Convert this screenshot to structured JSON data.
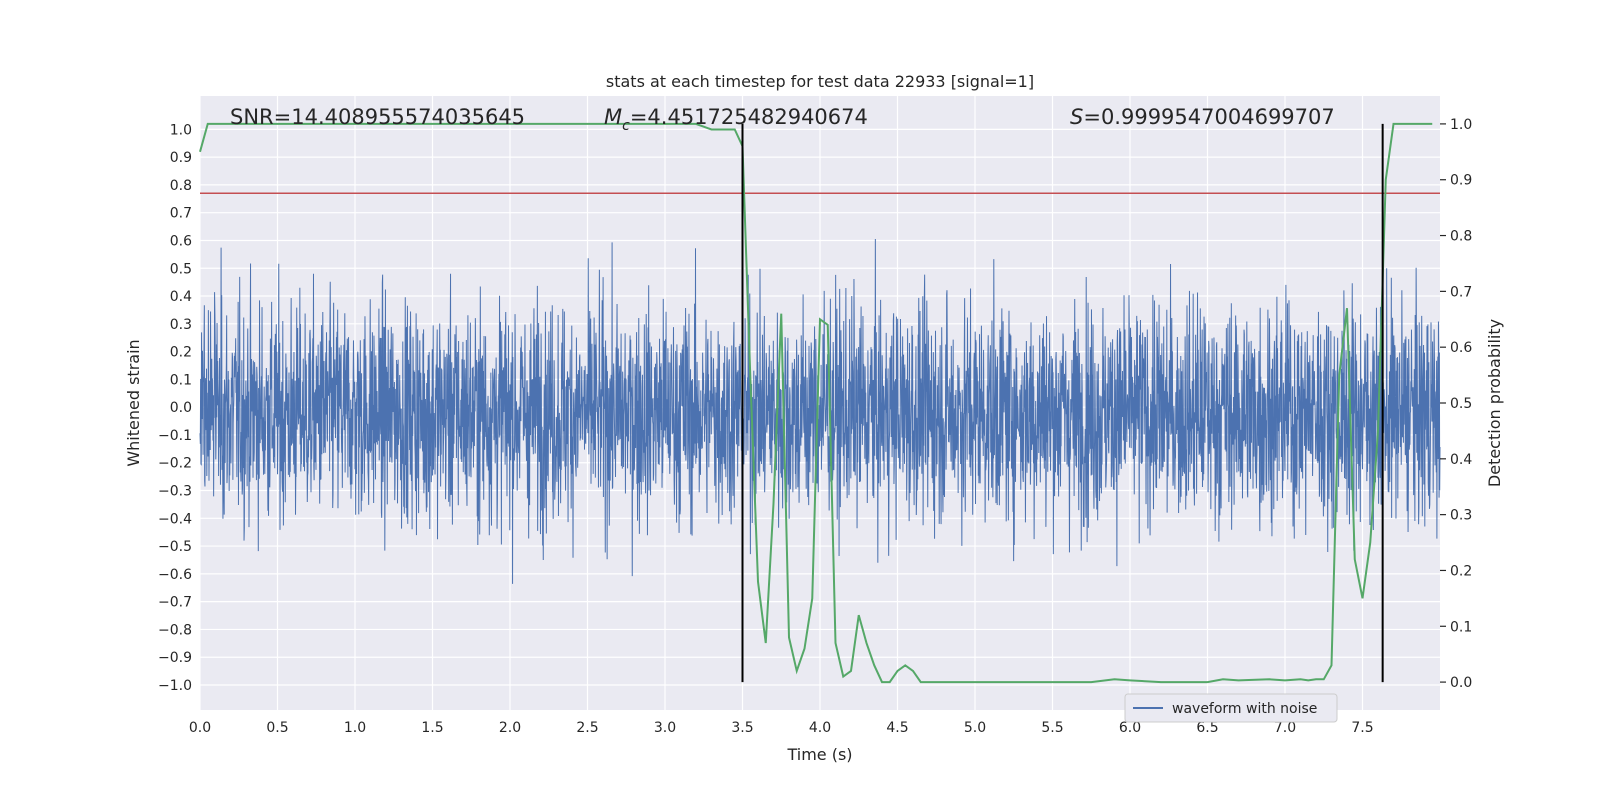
{
  "chart_data": {
    "type": "line",
    "title": "stats at each timestep for test data 22933 [signal=1]",
    "xlabel": "Time (s)",
    "ylabel": "Whitened strain",
    "y2label": "Detection probability",
    "xlim": [
      0.0,
      8.0
    ],
    "ylim": [
      -1.09,
      1.12
    ],
    "y2lim": [
      -0.05,
      1.05
    ],
    "xticks": [
      0.0,
      0.5,
      1.0,
      1.5,
      2.0,
      2.5,
      3.0,
      3.5,
      4.0,
      4.5,
      5.0,
      5.5,
      6.0,
      6.5,
      7.0,
      7.5
    ],
    "yticks": [
      -1.0,
      -0.9,
      -0.8,
      -0.7,
      -0.6,
      -0.5,
      -0.4,
      -0.3,
      -0.2,
      -0.1,
      0.0,
      0.1,
      0.2,
      0.3,
      0.4,
      0.5,
      0.6,
      0.7,
      0.8,
      0.9,
      1.0
    ],
    "y2ticks": [
      0.0,
      0.1,
      0.2,
      0.3,
      0.4,
      0.5,
      0.6,
      0.7,
      0.8,
      0.9,
      1.0
    ],
    "grid": true,
    "legend": {
      "placement": "lower-right",
      "entries": [
        "waveform with noise"
      ]
    },
    "annotations": {
      "snr": "SNR=14.408955574035645",
      "mc_symbol": "M",
      "mc_sub": "c",
      "mc_value": "=4.451725482940674",
      "s_symbol": "S",
      "s_value": "=0.9999547004699707"
    },
    "threshold_y": 0.77,
    "vlines_x": [
      3.5,
      7.63
    ],
    "series": [
      {
        "name": "waveform with noise",
        "axis": "left",
        "color": "#4c72b0",
        "t_range": [
          0.0,
          8.0
        ],
        "samples": 4000,
        "envelope_max": 0.8,
        "envelope_min": -1.0,
        "seed": 22933
      },
      {
        "axis": "right",
        "color": "#55a868",
        "x": [
          0.0,
          0.05,
          0.1,
          0.5,
          1.0,
          1.5,
          2.0,
          2.5,
          3.0,
          3.2,
          3.3,
          3.4,
          3.45,
          3.5,
          3.55,
          3.6,
          3.65,
          3.7,
          3.75,
          3.8,
          3.85,
          3.9,
          3.95,
          4.0,
          4.05,
          4.1,
          4.15,
          4.2,
          4.25,
          4.3,
          4.35,
          4.4,
          4.45,
          4.5,
          4.55,
          4.6,
          4.65,
          4.7,
          4.8,
          5.0,
          5.2,
          5.5,
          5.75,
          5.9,
          6.0,
          6.2,
          6.5,
          6.6,
          6.7,
          6.9,
          7.0,
          7.1,
          7.15,
          7.2,
          7.25,
          7.3,
          7.35,
          7.4,
          7.45,
          7.5,
          7.55,
          7.6,
          7.65,
          7.7,
          7.8,
          7.95
        ],
        "values": [
          0.95,
          1.0,
          1.0,
          1.0,
          1.0,
          1.0,
          1.0,
          1.0,
          1.0,
          1.0,
          0.99,
          0.99,
          0.99,
          0.96,
          0.55,
          0.18,
          0.07,
          0.32,
          0.66,
          0.08,
          0.02,
          0.06,
          0.15,
          0.65,
          0.64,
          0.07,
          0.01,
          0.02,
          0.12,
          0.07,
          0.03,
          0.0,
          0.0,
          0.02,
          0.03,
          0.02,
          0.0,
          0.0,
          0.0,
          0.0,
          0.0,
          0.0,
          0.0,
          0.005,
          0.003,
          0.0,
          0.0,
          0.005,
          0.003,
          0.005,
          0.003,
          0.005,
          0.003,
          0.005,
          0.005,
          0.03,
          0.55,
          0.67,
          0.22,
          0.15,
          0.25,
          0.45,
          0.9,
          1.0,
          1.0,
          1.0
        ]
      }
    ]
  }
}
